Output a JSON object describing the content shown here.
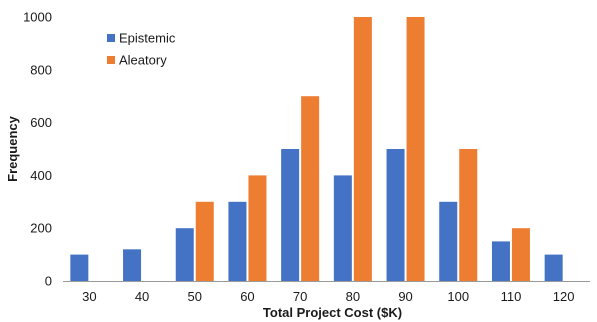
{
  "chart_data": {
    "type": "bar",
    "title": "",
    "xlabel": "Total Project Cost ($K)",
    "ylabel": "Frequency",
    "ylim": [
      0,
      1000
    ],
    "yticks": [
      0,
      200,
      400,
      600,
      800,
      1000
    ],
    "grid": false,
    "legend_position": "top-left",
    "categories": [
      "30",
      "40",
      "50",
      "60",
      "70",
      "80",
      "90",
      "100",
      "110",
      "120"
    ],
    "series": [
      {
        "name": "Epistemic",
        "color": "#4472c4",
        "values": [
          100,
          120,
          200,
          300,
          500,
          400,
          500,
          300,
          150,
          100
        ]
      },
      {
        "name": "Aleatory",
        "color": "#ed7d31",
        "values": [
          0,
          0,
          300,
          400,
          700,
          1000,
          1000,
          500,
          200,
          0
        ]
      }
    ]
  }
}
